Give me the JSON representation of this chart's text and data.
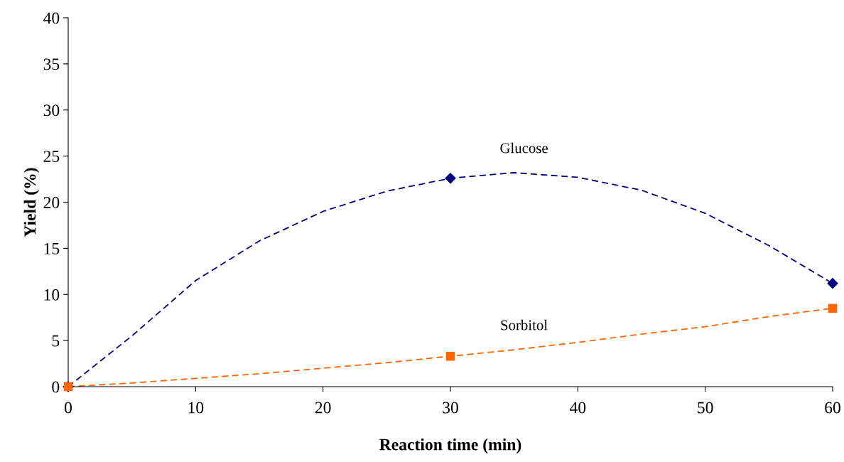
{
  "chart_data": {
    "type": "line",
    "xlabel": "Reaction time (min)",
    "ylabel": "Yield (%)",
    "series": [
      {
        "name": "Glucose",
        "color": "#000080",
        "x": [
          0,
          5,
          10,
          15,
          20,
          25,
          30,
          35,
          40,
          45,
          50,
          55,
          60
        ],
        "values": [
          0,
          5.5,
          11.5,
          15.8,
          19.0,
          21.2,
          22.6,
          23.2,
          22.7,
          21.3,
          18.8,
          15.3,
          11.2
        ],
        "marker": "none"
      },
      {
        "name": "Sorbitol",
        "color": "#ff6600",
        "x": [
          0,
          5,
          10,
          15,
          20,
          25,
          30,
          35,
          40,
          45,
          50,
          55,
          60
        ],
        "values": [
          0,
          0.4,
          0.9,
          1.4,
          2.0,
          2.6,
          3.3,
          4.0,
          4.8,
          5.7,
          6.5,
          7.6,
          8.5
        ],
        "marker": "none"
      },
      {
        "type": "scatter",
        "color": "#000080",
        "x": [
          0,
          30,
          60
        ],
        "values": [
          0,
          22.6,
          11.2
        ],
        "marker": "diamond"
      },
      {
        "type": "scatter",
        "color": "#ff6600",
        "x": [
          0,
          30,
          60
        ],
        "values": [
          0,
          3.3,
          8.5
        ],
        "marker": "square"
      }
    ],
    "xlim": [
      0,
      60
    ],
    "xticks": [
      0,
      10,
      20,
      30,
      40,
      50,
      60
    ],
    "ylim": [
      0,
      40
    ],
    "yticks": [
      0,
      5,
      10,
      15,
      20,
      25,
      30,
      35,
      40
    ],
    "grid": false,
    "legend": false,
    "line_style": "dashed"
  }
}
